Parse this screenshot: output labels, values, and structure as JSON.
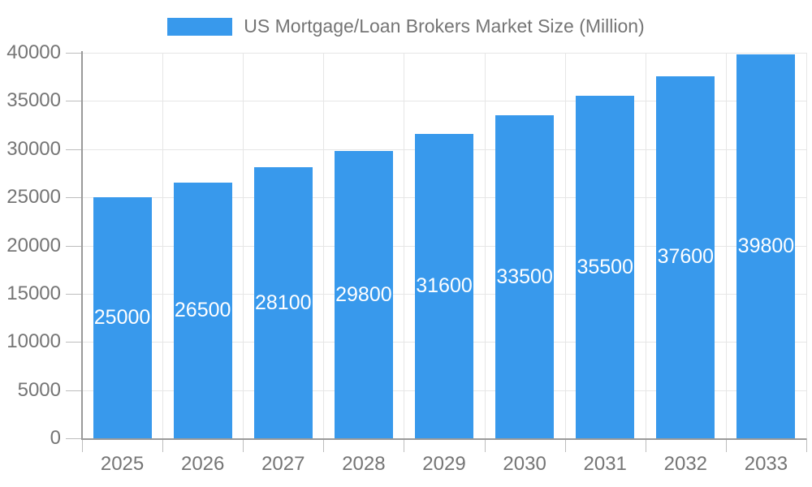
{
  "chart_data": {
    "type": "bar",
    "title": "US Mortgage/Loan Brokers Market Size (Million)",
    "categories": [
      "2025",
      "2026",
      "2027",
      "2028",
      "2029",
      "2030",
      "2031",
      "2032",
      "2033"
    ],
    "values": [
      25000,
      26500,
      28100,
      29800,
      31600,
      33500,
      35500,
      37600,
      39800
    ],
    "series": [
      {
        "name": "US Mortgage/Loan Brokers Market Size (Million)",
        "values": [
          25000,
          26500,
          28100,
          29800,
          31600,
          33500,
          35500,
          37600,
          39800
        ]
      }
    ],
    "xlabel": "",
    "ylabel": "",
    "ylim": [
      0,
      40000
    ],
    "y_ticks": [
      0,
      5000,
      10000,
      15000,
      20000,
      25000,
      30000,
      35000,
      40000
    ],
    "grid": true,
    "legend_position": "top",
    "value_labels": "inside-center"
  },
  "legend": {
    "label": "US Mortgage/Loan Brokers Market Size (Million)"
  },
  "colors": {
    "bar": "#3899EC",
    "value_label": "#FFFFFF",
    "axis_label": "#757575",
    "grid": "#E6E6E6",
    "axis_line": "#9A9A9A",
    "tick": "#BDBDBD",
    "background": "#FFFFFF"
  }
}
